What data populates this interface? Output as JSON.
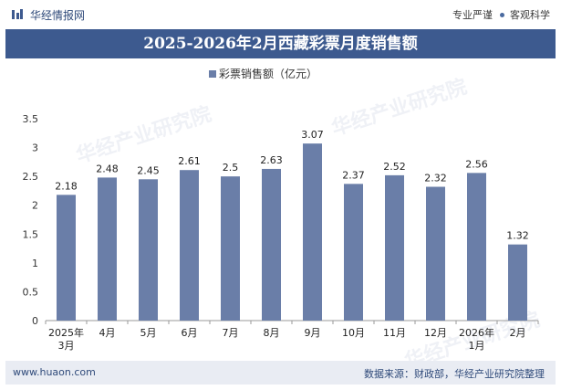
{
  "header": {
    "brand": "华经情报网",
    "tagline_left": "专业严谨",
    "tagline_right": "客观科学"
  },
  "watermark_text": "华经产业研究院",
  "footer": {
    "website": "www.huaon.com",
    "source": "数据来源：财政部，华经产业研究院整理"
  },
  "colors": {
    "bar": "#6a7ea8",
    "title_bg": "#3d5a8f",
    "brand": "#2f4a7a"
  },
  "chart_data": {
    "type": "bar",
    "title": "2025-2026年2月西藏彩票月度销售额",
    "legend_position": "top-center",
    "grid": false,
    "categories": [
      [
        "2025年",
        "3月"
      ],
      [
        "4月"
      ],
      [
        "5月"
      ],
      [
        "6月"
      ],
      [
        "7月"
      ],
      [
        "8月"
      ],
      [
        "9月"
      ],
      [
        "10月"
      ],
      [
        "11月"
      ],
      [
        "12月"
      ],
      [
        "2026年",
        "1月"
      ],
      [
        "2月"
      ]
    ],
    "series": [
      {
        "name": "彩票销售额（亿元）",
        "values": [
          2.18,
          2.48,
          2.45,
          2.61,
          2.5,
          2.63,
          3.07,
          2.37,
          2.52,
          2.32,
          2.56,
          1.32
        ],
        "labels": [
          "2.18",
          "2.48",
          "2.45",
          "2.61",
          "2.5",
          "2.63",
          "3.07",
          "2.37",
          "2.52",
          "2.32",
          "2.56",
          "1.32"
        ]
      }
    ],
    "ylim": [
      0,
      3.5
    ],
    "yticks": [
      "0",
      "0.5",
      "1",
      "1.5",
      "2",
      "2.5",
      "3",
      "3.5"
    ]
  }
}
